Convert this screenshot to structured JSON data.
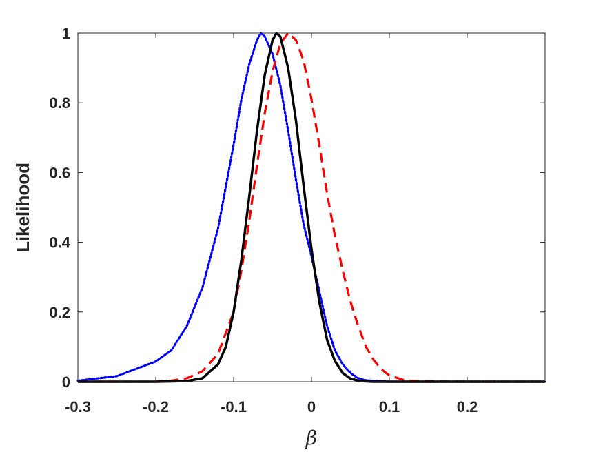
{
  "chart_data": {
    "type": "line",
    "title": "",
    "xlabel": "β",
    "ylabel": "Likelihood",
    "xlim": [
      -0.3,
      0.3
    ],
    "ylim": [
      0,
      1
    ],
    "x_ticks": [
      -0.3,
      -0.2,
      -0.1,
      0,
      0.1,
      0.2
    ],
    "x_tick_labels": [
      "-0.3",
      "-0.2",
      "-0.1",
      "0",
      "0.1",
      "0.2"
    ],
    "y_ticks": [
      0,
      0.2,
      0.4,
      0.6,
      0.8,
      1
    ],
    "y_tick_labels": [
      "0",
      "0.2",
      "0.4",
      "0.6",
      "0.8",
      "1"
    ],
    "grid": false,
    "legend": "none",
    "series": [
      {
        "color": "#0000ff",
        "style": "dotted",
        "x": [
          -0.3,
          -0.25,
          -0.2,
          -0.18,
          -0.16,
          -0.14,
          -0.12,
          -0.1,
          -0.09,
          -0.08,
          -0.07,
          -0.065,
          -0.06,
          -0.05,
          -0.04,
          -0.03,
          -0.02,
          -0.01,
          0,
          0.01,
          0.02,
          0.03,
          0.04,
          0.05,
          0.06,
          0.07,
          0.1,
          0.15,
          0.2,
          0.3
        ],
        "y": [
          0.003,
          0.016,
          0.058,
          0.09,
          0.16,
          0.27,
          0.44,
          0.68,
          0.81,
          0.91,
          0.98,
          1.0,
          0.99,
          0.94,
          0.85,
          0.72,
          0.58,
          0.45,
          0.36,
          0.26,
          0.16,
          0.09,
          0.05,
          0.025,
          0.01,
          0.004,
          0.0,
          0.0,
          0.0,
          0.0
        ]
      },
      {
        "color": "#ff0000",
        "style": "dashed",
        "x": [
          -0.3,
          -0.2,
          -0.18,
          -0.16,
          -0.14,
          -0.12,
          -0.1,
          -0.09,
          -0.08,
          -0.07,
          -0.06,
          -0.05,
          -0.04,
          -0.03,
          -0.02,
          -0.01,
          0,
          0.01,
          0.02,
          0.03,
          0.04,
          0.05,
          0.06,
          0.07,
          0.08,
          0.09,
          0.1,
          0.12,
          0.14,
          0.2,
          0.3
        ],
        "y": [
          0.0,
          0.0,
          0.003,
          0.01,
          0.03,
          0.08,
          0.2,
          0.32,
          0.46,
          0.62,
          0.77,
          0.89,
          0.97,
          1.0,
          0.98,
          0.92,
          0.81,
          0.68,
          0.54,
          0.42,
          0.32,
          0.23,
          0.16,
          0.1,
          0.062,
          0.035,
          0.018,
          0.004,
          0.001,
          0.0,
          0.0
        ]
      },
      {
        "color": "#000000",
        "style": "solid",
        "x": [
          -0.3,
          -0.2,
          -0.16,
          -0.14,
          -0.12,
          -0.11,
          -0.1,
          -0.09,
          -0.08,
          -0.07,
          -0.06,
          -0.05,
          -0.045,
          -0.04,
          -0.03,
          -0.02,
          -0.01,
          0,
          0.01,
          0.02,
          0.03,
          0.04,
          0.05,
          0.06,
          0.07,
          0.08,
          0.1,
          0.2,
          0.3
        ],
        "y": [
          0.0,
          0.0,
          0.002,
          0.01,
          0.05,
          0.1,
          0.2,
          0.35,
          0.53,
          0.72,
          0.88,
          0.98,
          1.0,
          0.99,
          0.9,
          0.75,
          0.56,
          0.38,
          0.23,
          0.12,
          0.06,
          0.025,
          0.009,
          0.003,
          0.001,
          0.0,
          0.0,
          0.0,
          0.0
        ]
      }
    ]
  }
}
